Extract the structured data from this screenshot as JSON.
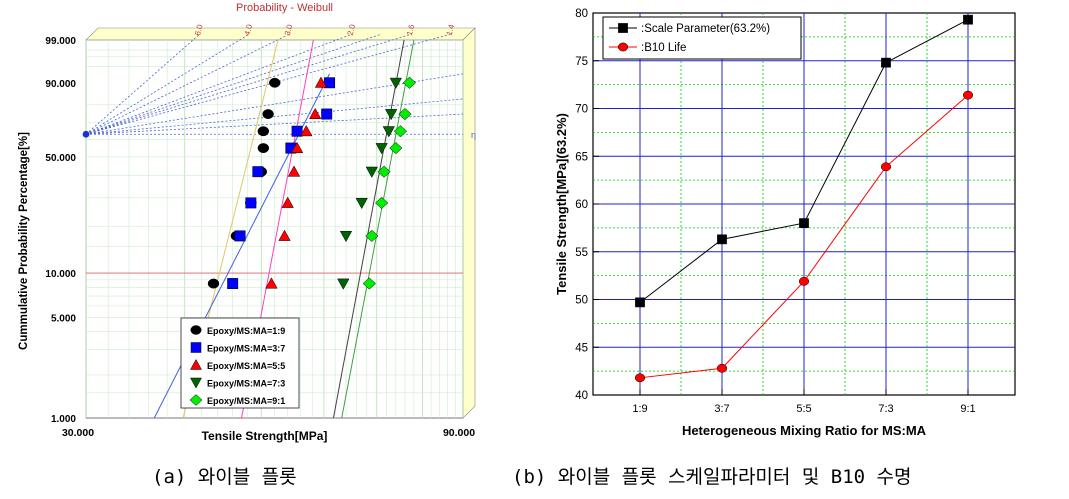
{
  "chart_data": [
    {
      "type": "scatter",
      "title": "Probability - Weibull",
      "xlabel": "Tensile Strength[MPa]",
      "ylabel": "Cummulative Probability Percentage[%]",
      "x_tick_labels": [
        "30.000",
        "90.000"
      ],
      "y_tick_labels": [
        "1.000",
        "5.000",
        "10.000",
        "50.000",
        "90.000",
        "99.000"
      ],
      "xlim": [
        30,
        90
      ],
      "ylim": [
        1,
        99
      ],
      "x_scale": "log",
      "y_scale": "weibull",
      "top_scale_labels": [
        "6.0",
        "4.0",
        "3.0",
        "2.0",
        "1.6",
        "1.4"
      ],
      "eta_label": "η",
      "legend_position": "bottom-right",
      "grid": true,
      "series": [
        {
          "name": "Epoxy/MS:MA=1:9",
          "marker": "circle",
          "color": "#000000",
          "x": [
            43.5,
            46.5,
            48.5,
            50.0,
            50.3,
            50.3,
            51.0,
            52.0
          ],
          "y": [
            8.5,
            17.5,
            28.0,
            42.0,
            55.0,
            65.0,
            75.0,
            90.0
          ]
        },
        {
          "name": "Epoxy/MS:MA=3:7",
          "marker": "square",
          "color": "#0000ff",
          "x": [
            46.0,
            47.0,
            48.5,
            49.5,
            54.5,
            55.5,
            60.5,
            61.0
          ],
          "y": [
            8.5,
            17.5,
            28.0,
            42.0,
            55.0,
            65.0,
            75.0,
            90.0
          ]
        },
        {
          "name": "Epoxy/MS:MA=5:5",
          "marker": "triangle-up",
          "color": "#ff0000",
          "x": [
            51.5,
            53.5,
            54.0,
            55.0,
            55.5,
            57.0,
            58.5,
            59.5
          ],
          "y": [
            8.5,
            17.5,
            28.0,
            42.0,
            55.0,
            65.0,
            75.0,
            90.0
          ]
        },
        {
          "name": "Epoxy/MS:MA=7:3",
          "marker": "triangle-down",
          "color": "#006400",
          "x": [
            63.5,
            64.0,
            67.0,
            69.0,
            71.0,
            72.5,
            73.0,
            74.0
          ],
          "y": [
            8.5,
            17.5,
            28.0,
            42.0,
            55.0,
            65.0,
            75.0,
            90.0
          ]
        },
        {
          "name": "Epoxy/MS:MA=9:1",
          "marker": "diamond",
          "color": "#00ee00",
          "x": [
            68.5,
            69.0,
            71.0,
            71.5,
            74.0,
            75.0,
            76.0,
            77.0
          ],
          "y": [
            8.5,
            17.5,
            28.0,
            42.0,
            55.0,
            65.0,
            75.0,
            90.0
          ]
        }
      ]
    },
    {
      "type": "line",
      "title": "",
      "xlabel": "Heterogeneous Mixing Ratio for MS:MA",
      "ylabel": "Tensile Strength[MPa](63.2%)",
      "categories": [
        "1:9",
        "3:7",
        "5:5",
        "7:3",
        "9:1"
      ],
      "ylim": [
        40,
        80
      ],
      "y_ticks": [
        40,
        45,
        50,
        55,
        60,
        65,
        70,
        75,
        80
      ],
      "legend_position": "top-left",
      "grid": true,
      "series": [
        {
          "name": ":Scale Parameter(63.2%)",
          "marker": "square",
          "color": "#000000",
          "values": [
            49.7,
            56.3,
            58.0,
            74.8,
            79.3
          ]
        },
        {
          "name": ":B10 Life",
          "marker": "circle",
          "color": "#ff0000",
          "values": [
            41.8,
            42.8,
            51.9,
            63.9,
            71.4
          ]
        }
      ]
    }
  ],
  "captions": {
    "a": "(a) 와이블 플롯",
    "b": "(b) 와이블 플롯 스케일파라미터 및 B10 수명"
  }
}
